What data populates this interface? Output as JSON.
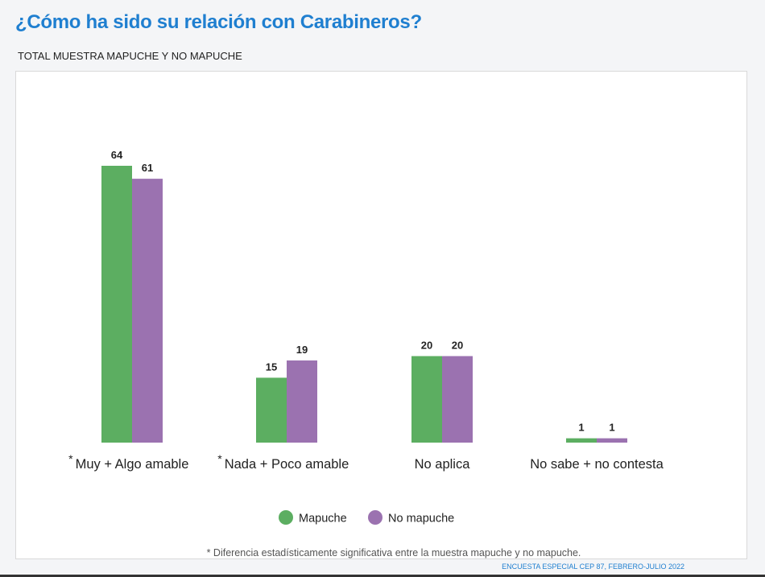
{
  "title": "¿Cómo ha sido su relación con Carabineros?",
  "subtitle": "TOTAL MUESTRA MAPUCHE Y NO MAPUCHE",
  "footnote": "* Diferencia estadísticamente significativa entre la muestra mapuche y no mapuche.",
  "source": "ENCUESTA ESPECIAL CEP 87, FEBRERO-JULIO 2022",
  "colors": {
    "mapuche": "#5cae61",
    "no_mapuche": "#9b72b0",
    "title": "#1f7fd0"
  },
  "chart_data": {
    "type": "bar",
    "title": "¿Cómo ha sido su relación con Carabineros?",
    "categories": [
      "Muy + Algo amable",
      "Nada + Poco amable",
      "No aplica",
      "No sabe + no contesta"
    ],
    "category_markers": [
      "*",
      "*",
      "",
      ""
    ],
    "series": [
      {
        "name": "Mapuche",
        "color": "#5cae61",
        "values": [
          64,
          15,
          20,
          1
        ]
      },
      {
        "name": "No mapuche",
        "color": "#9b72b0",
        "values": [
          61,
          19,
          20,
          1
        ]
      }
    ],
    "xlabel": "",
    "ylabel": "",
    "ylim": [
      0,
      64
    ],
    "grid": false,
    "legend_position": "bottom",
    "data_labels": true
  }
}
